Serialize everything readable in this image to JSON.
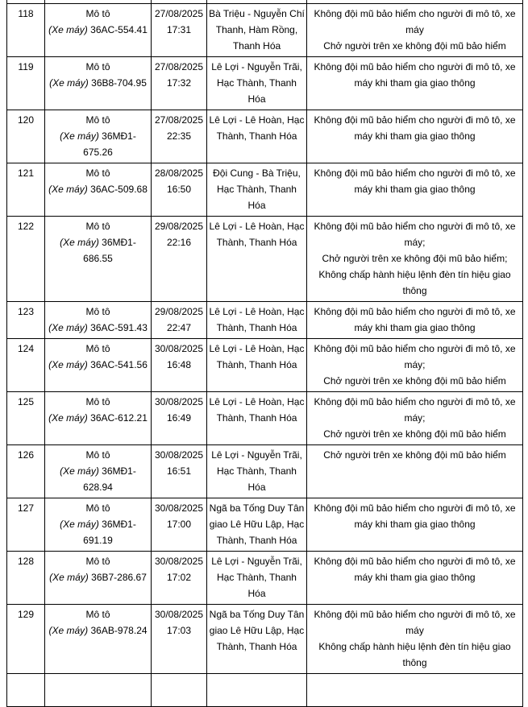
{
  "page": {
    "background": "#ffffff",
    "border_color": "#000000",
    "text_color": "#000000"
  },
  "table": {
    "rows": [
      {
        "no": "118",
        "vehicle_type": "Mô tô",
        "vehicle_kind": "(Xe máy)",
        "plate": "36AC-554.41",
        "date": "27/08/2025",
        "time": "17:31",
        "location": "Bà Triệu - Nguyễn Chí Thanh, Hàm Rồng, Thanh Hóa",
        "violations": [
          "Không đội mũ bảo hiểm cho người đi mô tô, xe máy",
          "Chở người trên xe không đội mũ bảo hiểm"
        ]
      },
      {
        "no": "119",
        "vehicle_type": "Mô tô",
        "vehicle_kind": "(Xe máy)",
        "plate": "36B8-704.95",
        "date": "27/08/2025",
        "time": "17:32",
        "location": "Lê Lợi - Nguyễn Trãi, Hạc Thành, Thanh Hóa",
        "violations": [
          "Không đội mũ bảo hiểm cho người đi mô tô, xe máy khi tham gia giao thông"
        ]
      },
      {
        "no": "120",
        "vehicle_type": "Mô tô",
        "vehicle_kind": "(Xe máy)",
        "plate": "36MĐ1-675.26",
        "date": "27/08/2025",
        "time": "22:35",
        "location": "Lê Lợi - Lê Hoàn, Hạc Thành, Thanh Hóa",
        "violations": [
          "Không đội mũ bảo hiểm cho người đi mô tô, xe máy khi tham gia giao thông"
        ]
      },
      {
        "no": "121",
        "vehicle_type": "Mô tô",
        "vehicle_kind": "(Xe máy)",
        "plate": "36AC-509.68",
        "date": "28/08/2025",
        "time": "16:50",
        "location": "Đội Cung - Bà Triệu, Hạc Thành, Thanh Hóa",
        "violations": [
          "Không đội mũ bảo hiểm cho người đi mô tô, xe máy khi tham gia giao thông"
        ]
      },
      {
        "no": "122",
        "vehicle_type": "Mô tô",
        "vehicle_kind": "(Xe máy)",
        "plate": "36MĐ1-686.55",
        "date": "29/08/2025",
        "time": "22:16",
        "location": "Lê Lợi - Lê Hoàn, Hạc Thành, Thanh Hóa",
        "violations": [
          "Không đội mũ bảo hiểm cho người đi mô tô, xe máy;",
          "Chở người trên xe không đội mũ bảo hiểm;",
          "Không chấp hành hiệu lệnh đèn tín hiệu giao thông"
        ]
      },
      {
        "no": "123",
        "vehicle_type": "Mô tô",
        "vehicle_kind": "(Xe máy)",
        "plate": "36AC-591.43",
        "date": "29/08/2025",
        "time": "22:47",
        "location": "Lê Lợi - Lê Hoàn, Hạc Thành, Thanh Hóa",
        "violations": [
          "Không đội mũ bảo hiểm cho người đi mô tô, xe máy khi tham gia giao thông"
        ]
      },
      {
        "no": "124",
        "vehicle_type": "Mô tô",
        "vehicle_kind": "(Xe máy)",
        "plate": "36AC-541.56",
        "date": "30/08/2025",
        "time": "16:48",
        "location": "Lê Lợi - Lê Hoàn, Hạc Thành, Thanh Hóa",
        "violations": [
          "Không đội mũ bảo hiểm cho người đi mô tô, xe máy;",
          "Chở người trên xe không đội mũ bảo hiểm"
        ]
      },
      {
        "no": "125",
        "vehicle_type": "Mô tô",
        "vehicle_kind": "(Xe máy)",
        "plate": "36AC-612.21",
        "date": "30/08/2025",
        "time": "16:49",
        "location": "Lê Lợi - Lê Hoàn, Hạc Thành, Thanh Hóa",
        "violations": [
          "Không đội mũ bảo hiểm cho người đi mô tô, xe máy;",
          "Chở người trên xe không đội mũ bảo hiểm"
        ]
      },
      {
        "no": "126",
        "vehicle_type": "Mô tô",
        "vehicle_kind": "(Xe máy)",
        "plate": "36MĐ1-628.94",
        "date": "30/08/2025",
        "time": "16:51",
        "location": "Lê Lợi - Nguyễn Trãi, Hạc Thành, Thanh Hóa",
        "violations": [
          "Chở người trên xe không đội mũ bảo hiểm"
        ]
      },
      {
        "no": "127",
        "vehicle_type": "Mô tô",
        "vehicle_kind": "(Xe máy)",
        "plate": "36MĐ1-691.19",
        "date": "30/08/2025",
        "time": "17:00",
        "location": "Ngã ba Tống Duy Tân giao Lê Hữu Lập, Hạc Thành, Thanh Hóa",
        "violations": [
          "Không đội mũ bảo hiểm cho người đi mô tô, xe máy khi tham gia giao thông"
        ]
      },
      {
        "no": "128",
        "vehicle_type": "Mô tô",
        "vehicle_kind": "(Xe máy)",
        "plate": "36B7-286.67",
        "date": "30/08/2025",
        "time": "17:02",
        "location": "Lê Lợi - Nguyễn Trãi, Hạc Thành, Thanh Hóa",
        "violations": [
          "Không đội mũ bảo hiểm cho người đi mô tô, xe máy khi tham gia giao thông"
        ]
      },
      {
        "no": "129",
        "vehicle_type": "Mô tô",
        "vehicle_kind": "(Xe máy)",
        "plate": "36AB-978.24",
        "date": "30/08/2025",
        "time": "17:03",
        "location": "Ngã ba Tống Duy Tân giao Lê Hữu Lập, Hạc Thành, Thanh Hóa",
        "violations": [
          "Không đội mũ bảo hiểm cho người đi mô tô, xe máy",
          "Không chấp hành hiệu lệnh đèn tín hiệu giao thông"
        ]
      }
    ]
  }
}
